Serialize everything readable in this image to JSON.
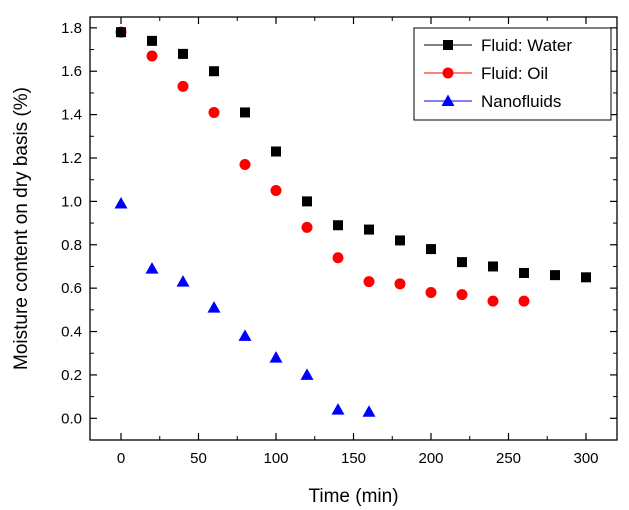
{
  "chart_data": {
    "type": "scatter",
    "title": "",
    "xlabel": "Time (min)",
    "ylabel": "Moisture content on dry basis (%)",
    "xlim": [
      -20,
      320
    ],
    "ylim": [
      -0.1,
      1.85
    ],
    "xticks": [
      0,
      50,
      100,
      150,
      200,
      250,
      300
    ],
    "xtick_labels": [
      "0",
      "50",
      "100",
      "150",
      "200",
      "250",
      "300"
    ],
    "yticks": [
      0.0,
      0.2,
      0.4,
      0.6,
      0.8,
      1.0,
      1.2,
      1.4,
      1.6,
      1.8
    ],
    "ytick_labels": [
      "0.0",
      "0.2",
      "0.4",
      "0.6",
      "0.8",
      "1.0",
      "1.2",
      "1.4",
      "1.6",
      "1.8"
    ],
    "grid": false,
    "legend_position": "top-right",
    "series": [
      {
        "name": "Fluid: Water",
        "marker": "square",
        "color": "#000000",
        "x": [
          0,
          20,
          40,
          60,
          80,
          100,
          120,
          140,
          160,
          180,
          200,
          220,
          240,
          260,
          280,
          300
        ],
        "y": [
          1.78,
          1.74,
          1.68,
          1.6,
          1.41,
          1.23,
          1.0,
          0.89,
          0.87,
          0.82,
          0.78,
          0.72,
          0.7,
          0.67,
          0.66,
          0.65
        ]
      },
      {
        "name": "Fluid: Oil",
        "marker": "circle",
        "color": "#ff0000",
        "x": [
          0,
          20,
          40,
          60,
          80,
          100,
          120,
          140,
          160,
          180,
          200,
          220,
          240,
          260
        ],
        "y": [
          1.78,
          1.67,
          1.53,
          1.41,
          1.17,
          1.05,
          0.88,
          0.74,
          0.63,
          0.62,
          0.58,
          0.57,
          0.54,
          0.54
        ]
      },
      {
        "name": "Nanofluids",
        "marker": "triangle",
        "color": "#0000ff",
        "x": [
          0,
          20,
          40,
          60,
          80,
          100,
          120,
          140,
          160
        ],
        "y": [
          0.99,
          0.69,
          0.63,
          0.51,
          0.38,
          0.28,
          0.2,
          0.04,
          0.03
        ]
      }
    ]
  }
}
